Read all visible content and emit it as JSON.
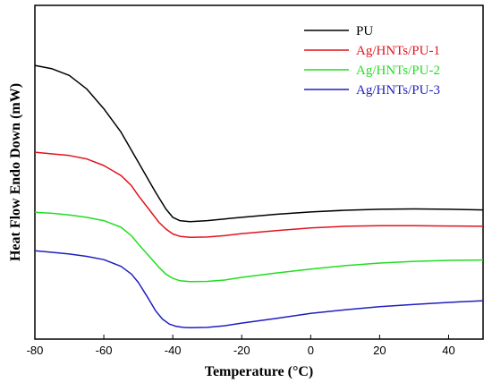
{
  "chart_data": {
    "type": "line",
    "title": "",
    "xlabel": "Temperature (°C)",
    "ylabel": "Heat Flow Endo Down (mW)",
    "xlim": [
      -80,
      50
    ],
    "x_ticks": [
      "-80",
      "-60",
      "-40",
      "-20",
      "0",
      "20",
      "40"
    ],
    "y_tick_labels_shown": false,
    "grid": false,
    "legend_position": "top-right",
    "series": [
      {
        "name": "PU",
        "color": "#000000",
        "x": [
          -80,
          -75,
          -70,
          -65,
          -60,
          -55,
          -50,
          -45,
          -42,
          -40,
          -38,
          -35,
          -30,
          -25,
          -20,
          -10,
          0,
          10,
          20,
          30,
          40,
          50
        ],
        "y": [
          0.82,
          0.81,
          0.79,
          0.75,
          0.69,
          0.62,
          0.53,
          0.44,
          0.39,
          0.365,
          0.355,
          0.352,
          0.355,
          0.36,
          0.365,
          0.374,
          0.381,
          0.386,
          0.389,
          0.39,
          0.389,
          0.387
        ]
      },
      {
        "name": "Ag/HNTs/PU-1",
        "color": "#e0141e",
        "x": [
          -80,
          -75,
          -70,
          -65,
          -60,
          -55,
          -52,
          -50,
          -47,
          -44,
          -42,
          -40,
          -38,
          -35,
          -30,
          -25,
          -20,
          -10,
          0,
          10,
          20,
          30,
          40,
          50
        ],
        "y": [
          0.56,
          0.555,
          0.55,
          0.54,
          0.52,
          0.49,
          0.46,
          0.43,
          0.39,
          0.35,
          0.33,
          0.315,
          0.308,
          0.305,
          0.306,
          0.31,
          0.316,
          0.325,
          0.333,
          0.338,
          0.34,
          0.34,
          0.339,
          0.338
        ]
      },
      {
        "name": "Ag/HNTs/PU-2",
        "color": "#22dd22",
        "x": [
          -80,
          -75,
          -70,
          -65,
          -60,
          -55,
          -52,
          -50,
          -47,
          -44,
          -42,
          -40,
          -38,
          -35,
          -30,
          -25,
          -20,
          -10,
          0,
          10,
          20,
          30,
          40,
          50
        ],
        "y": [
          0.38,
          0.377,
          0.372,
          0.365,
          0.355,
          0.335,
          0.31,
          0.285,
          0.25,
          0.215,
          0.195,
          0.182,
          0.175,
          0.172,
          0.173,
          0.177,
          0.185,
          0.198,
          0.21,
          0.22,
          0.228,
          0.233,
          0.236,
          0.237
        ]
      },
      {
        "name": "Ag/HNTs/PU-3",
        "color": "#1f1fbf",
        "x": [
          -80,
          -75,
          -70,
          -65,
          -60,
          -55,
          -52,
          -50,
          -47,
          -45,
          -43,
          -41,
          -39,
          -37,
          -35,
          -30,
          -25,
          -20,
          -10,
          0,
          10,
          20,
          30,
          40,
          50
        ],
        "y": [
          0.265,
          0.26,
          0.255,
          0.248,
          0.238,
          0.218,
          0.195,
          0.17,
          0.12,
          0.085,
          0.06,
          0.045,
          0.038,
          0.035,
          0.034,
          0.035,
          0.04,
          0.048,
          0.062,
          0.077,
          0.088,
          0.097,
          0.104,
          0.11,
          0.115
        ]
      }
    ]
  }
}
